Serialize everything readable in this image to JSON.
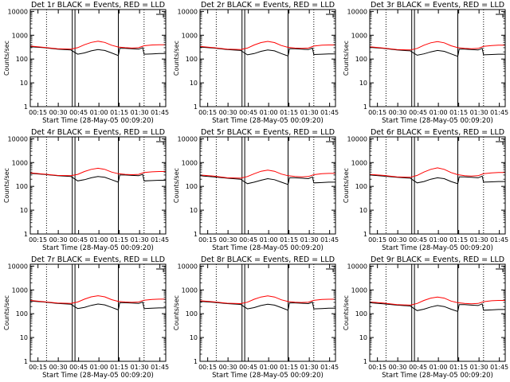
{
  "figure": {
    "background": "#ffffff",
    "axis_color": "#000000"
  },
  "colors": {
    "events": "#000000",
    "lld": "#ff0000"
  },
  "ylabel": "Counts/sec",
  "xlabel": "Start Time (28-May-05 00:09:20)",
  "x_ticks": [
    "00:15",
    "00:30",
    "00:45",
    "01:00",
    "01:15",
    "01:30",
    "01:45"
  ],
  "y_ticks": [
    "1",
    "10",
    "100",
    "1000",
    "10000"
  ],
  "chart_data": [
    {
      "type": "line",
      "title": "Det 1r BLACK = Events, RED = LLD",
      "xlabel": "Start Time (28-May-05 00:09:20)",
      "ylabel": "Counts/sec",
      "y_scale": "log",
      "ylim": [
        1,
        12000
      ],
      "xlim_minutes": [
        0,
        100
      ],
      "x_tick_minutes": [
        5.67,
        20.67,
        35.67,
        50.67,
        65.67,
        80.67,
        95.67
      ],
      "dotted_lines_minutes": [
        12,
        84
      ],
      "solid_lines_minutes": [
        31,
        33,
        65
      ],
      "series": [
        {
          "name": "BLACK = Events",
          "color": "#000000",
          "x": [
            0,
            10,
            20,
            30,
            31,
            35,
            40,
            45,
            50,
            55,
            60,
            65,
            66,
            70,
            75,
            80,
            83,
            84,
            90,
            95,
            100
          ],
          "y": [
            330,
            300,
            260,
            240,
            220,
            160,
            180,
            220,
            250,
            230,
            180,
            140,
            280,
            280,
            270,
            260,
            300,
            160,
            165,
            170,
            170
          ]
        },
        {
          "name": "RED = LLD",
          "color": "#ff0000",
          "x": [
            0,
            10,
            20,
            30,
            35,
            40,
            45,
            50,
            55,
            60,
            65,
            70,
            75,
            80,
            84,
            90,
            95,
            100
          ],
          "y": [
            350,
            310,
            270,
            260,
            300,
            400,
            500,
            560,
            500,
            380,
            320,
            300,
            290,
            300,
            360,
            390,
            400,
            400
          ]
        }
      ]
    },
    {
      "type": "line",
      "title": "Det 2r BLACK = Events, RED = LLD",
      "xlabel": "Start Time (28-May-05 00:09:20)",
      "ylabel": "Counts/sec",
      "y_scale": "log",
      "ylim": [
        1,
        12000
      ],
      "xlim_minutes": [
        0,
        100
      ],
      "x_tick_minutes": [
        5.67,
        20.67,
        35.67,
        50.67,
        65.67,
        80.67,
        95.67
      ],
      "dotted_lines_minutes": [
        12,
        84
      ],
      "solid_lines_minutes": [
        31,
        33,
        65
      ],
      "series": [
        {
          "name": "BLACK = Events",
          "color": "#000000",
          "x": [
            0,
            10,
            20,
            30,
            31,
            35,
            40,
            45,
            50,
            55,
            60,
            65,
            66,
            70,
            75,
            80,
            83,
            84,
            90,
            95,
            100
          ],
          "y": [
            320,
            290,
            250,
            230,
            210,
            150,
            170,
            210,
            240,
            220,
            170,
            135,
            270,
            270,
            260,
            250,
            290,
            155,
            160,
            165,
            165
          ]
        },
        {
          "name": "RED = LLD",
          "color": "#ff0000",
          "x": [
            0,
            10,
            20,
            30,
            35,
            40,
            45,
            50,
            55,
            60,
            65,
            70,
            75,
            80,
            84,
            90,
            95,
            100
          ],
          "y": [
            340,
            300,
            260,
            250,
            290,
            390,
            490,
            550,
            490,
            370,
            310,
            290,
            280,
            290,
            350,
            380,
            390,
            390
          ]
        }
      ]
    },
    {
      "type": "line",
      "title": "Det 3r BLACK = Events, RED = LLD",
      "xlabel": "Start Time (28-May-05 00:09:20)",
      "ylabel": "Counts/sec",
      "y_scale": "log",
      "ylim": [
        1,
        12000
      ],
      "xlim_minutes": [
        0,
        100
      ],
      "x_tick_minutes": [
        5.67,
        20.67,
        35.67,
        50.67,
        65.67,
        80.67,
        95.67
      ],
      "dotted_lines_minutes": [
        12,
        84
      ],
      "solid_lines_minutes": [
        31,
        33,
        65
      ],
      "series": [
        {
          "name": "BLACK = Events",
          "color": "#000000",
          "x": [
            0,
            10,
            20,
            30,
            31,
            35,
            40,
            45,
            50,
            55,
            60,
            65,
            66,
            70,
            75,
            80,
            83,
            84,
            90,
            95,
            100
          ],
          "y": [
            310,
            280,
            240,
            220,
            200,
            145,
            165,
            200,
            230,
            210,
            165,
            130,
            260,
            260,
            250,
            240,
            280,
            150,
            155,
            160,
            160
          ]
        },
        {
          "name": "RED = LLD",
          "color": "#ff0000",
          "x": [
            0,
            10,
            20,
            30,
            35,
            40,
            45,
            50,
            55,
            60,
            65,
            70,
            75,
            80,
            84,
            90,
            95,
            100
          ],
          "y": [
            330,
            290,
            250,
            240,
            280,
            380,
            480,
            540,
            480,
            360,
            300,
            280,
            270,
            280,
            340,
            370,
            380,
            380
          ]
        }
      ]
    },
    {
      "type": "line",
      "title": "Det 4r BLACK = Events, RED = LLD",
      "xlabel": "Start Time (28-May-05 00:09:20)",
      "ylabel": "Counts/sec",
      "y_scale": "log",
      "ylim": [
        1,
        12000
      ],
      "xlim_minutes": [
        0,
        100
      ],
      "x_tick_minutes": [
        5.67,
        20.67,
        35.67,
        50.67,
        65.67,
        80.67,
        95.67
      ],
      "dotted_lines_minutes": [
        12,
        84
      ],
      "solid_lines_minutes": [
        31,
        33,
        65
      ],
      "series": [
        {
          "name": "BLACK = Events",
          "color": "#000000",
          "x": [
            0,
            10,
            20,
            30,
            31,
            35,
            40,
            45,
            50,
            55,
            60,
            65,
            66,
            70,
            75,
            80,
            83,
            84,
            90,
            95,
            100
          ],
          "y": [
            350,
            320,
            280,
            260,
            240,
            170,
            190,
            230,
            260,
            240,
            190,
            150,
            300,
            300,
            290,
            280,
            320,
            170,
            175,
            180,
            180
          ]
        },
        {
          "name": "RED = LLD",
          "color": "#ff0000",
          "x": [
            0,
            10,
            20,
            30,
            35,
            40,
            45,
            50,
            55,
            60,
            65,
            70,
            75,
            80,
            84,
            90,
            95,
            100
          ],
          "y": [
            370,
            330,
            290,
            280,
            320,
            420,
            520,
            580,
            520,
            400,
            340,
            320,
            310,
            320,
            380,
            410,
            420,
            420
          ]
        }
      ]
    },
    {
      "type": "line",
      "title": "Det 5r BLACK = Events, RED = LLD",
      "xlabel": "Start Time (28-May-05 00:09:20)",
      "ylabel": "Counts/sec",
      "y_scale": "log",
      "ylim": [
        1,
        12000
      ],
      "xlim_minutes": [
        0,
        100
      ],
      "x_tick_minutes": [
        5.67,
        20.67,
        35.67,
        50.67,
        65.67,
        80.67,
        95.67
      ],
      "dotted_lines_minutes": [
        12,
        84
      ],
      "solid_lines_minutes": [
        31,
        33,
        65
      ],
      "series": [
        {
          "name": "BLACK = Events",
          "color": "#000000",
          "x": [
            0,
            10,
            20,
            30,
            31,
            35,
            40,
            45,
            50,
            55,
            60,
            65,
            66,
            70,
            75,
            80,
            83,
            84,
            90,
            95,
            100
          ],
          "y": [
            280,
            250,
            220,
            200,
            180,
            130,
            150,
            180,
            210,
            190,
            150,
            120,
            230,
            230,
            220,
            210,
            250,
            140,
            145,
            150,
            150
          ]
        },
        {
          "name": "RED = LLD",
          "color": "#ff0000",
          "x": [
            0,
            10,
            20,
            30,
            35,
            40,
            45,
            50,
            55,
            60,
            65,
            70,
            75,
            80,
            84,
            90,
            95,
            100
          ],
          "y": [
            300,
            270,
            230,
            220,
            260,
            340,
            430,
            480,
            430,
            330,
            280,
            260,
            250,
            260,
            310,
            340,
            350,
            350
          ]
        }
      ]
    },
    {
      "type": "line",
      "title": "Det 6r BLACK = Events, RED = LLD",
      "xlabel": "Start Time (28-May-05 00:09:20)",
      "ylabel": "Counts/sec",
      "y_scale": "log",
      "ylim": [
        1,
        12000
      ],
      "xlim_minutes": [
        0,
        100
      ],
      "x_tick_minutes": [
        5.67,
        20.67,
        35.67,
        50.67,
        65.67,
        80.67,
        95.67
      ],
      "dotted_lines_minutes": [
        12,
        84
      ],
      "solid_lines_minutes": [
        31,
        33,
        65
      ],
      "series": [
        {
          "name": "BLACK = Events",
          "color": "#000000",
          "x": [
            0,
            10,
            20,
            30,
            31,
            35,
            40,
            45,
            50,
            55,
            60,
            65,
            66,
            70,
            75,
            80,
            83,
            84,
            90,
            95,
            100
          ],
          "y": [
            300,
            270,
            240,
            220,
            200,
            140,
            160,
            200,
            230,
            210,
            160,
            130,
            250,
            250,
            240,
            230,
            270,
            150,
            155,
            160,
            160
          ]
        },
        {
          "name": "RED = LLD",
          "color": "#ff0000",
          "x": [
            0,
            10,
            20,
            30,
            35,
            40,
            45,
            50,
            55,
            60,
            65,
            70,
            75,
            80,
            84,
            90,
            95,
            100
          ],
          "y": [
            320,
            290,
            250,
            240,
            290,
            400,
            520,
            600,
            520,
            380,
            310,
            280,
            270,
            280,
            340,
            370,
            380,
            380
          ]
        }
      ]
    },
    {
      "type": "line",
      "title": "Det 7r BLACK = Events, RED = LLD",
      "xlabel": "Start Time (28-May-05 00:09:20)",
      "ylabel": "Counts/sec",
      "y_scale": "log",
      "ylim": [
        1,
        12000
      ],
      "xlim_minutes": [
        0,
        100
      ],
      "x_tick_minutes": [
        5.67,
        20.67,
        35.67,
        50.67,
        65.67,
        80.67,
        95.67
      ],
      "dotted_lines_minutes": [
        12,
        84
      ],
      "solid_lines_minutes": [
        31,
        33,
        65
      ],
      "series": [
        {
          "name": "BLACK = Events",
          "color": "#000000",
          "x": [
            0,
            10,
            20,
            30,
            31,
            35,
            40,
            45,
            50,
            55,
            60,
            65,
            66,
            70,
            75,
            80,
            83,
            84,
            90,
            95,
            100
          ],
          "y": [
            340,
            310,
            270,
            250,
            230,
            165,
            185,
            225,
            255,
            235,
            185,
            145,
            290,
            290,
            280,
            270,
            310,
            165,
            170,
            175,
            175
          ]
        },
        {
          "name": "RED = LLD",
          "color": "#ff0000",
          "x": [
            0,
            10,
            20,
            30,
            35,
            40,
            45,
            50,
            55,
            60,
            65,
            70,
            75,
            80,
            84,
            90,
            95,
            100
          ],
          "y": [
            360,
            320,
            280,
            270,
            310,
            410,
            510,
            570,
            510,
            390,
            330,
            310,
            300,
            310,
            370,
            400,
            410,
            410
          ]
        }
      ]
    },
    {
      "type": "line",
      "title": "Det 8r BLACK = Events, RED = LLD",
      "xlabel": "Start Time (28-May-05 00:09:20)",
      "ylabel": "Counts/sec",
      "y_scale": "log",
      "ylim": [
        1,
        12000
      ],
      "xlim_minutes": [
        0,
        100
      ],
      "x_tick_minutes": [
        5.67,
        20.67,
        35.67,
        50.67,
        65.67,
        80.67,
        95.67
      ],
      "dotted_lines_minutes": [
        12,
        84
      ],
      "solid_lines_minutes": [
        31,
        33,
        65
      ],
      "series": [
        {
          "name": "BLACK = Events",
          "color": "#000000",
          "x": [
            0,
            10,
            20,
            30,
            31,
            35,
            40,
            45,
            50,
            55,
            60,
            65,
            66,
            70,
            75,
            80,
            83,
            84,
            90,
            95,
            100
          ],
          "y": [
            330,
            300,
            265,
            245,
            225,
            160,
            180,
            220,
            250,
            230,
            180,
            140,
            285,
            285,
            275,
            265,
            305,
            160,
            165,
            170,
            170
          ]
        },
        {
          "name": "RED = LLD",
          "color": "#ff0000",
          "x": [
            0,
            10,
            20,
            30,
            35,
            40,
            45,
            50,
            55,
            60,
            65,
            70,
            75,
            80,
            84,
            90,
            95,
            100
          ],
          "y": [
            350,
            315,
            275,
            265,
            305,
            405,
            505,
            565,
            505,
            385,
            325,
            305,
            295,
            305,
            365,
            395,
            405,
            405
          ]
        }
      ]
    },
    {
      "type": "line",
      "title": "Det 9r BLACK = Events, RED = LLD",
      "xlabel": "Start Time (28-May-05 00:09:20)",
      "ylabel": "Counts/sec",
      "y_scale": "log",
      "ylim": [
        1,
        12000
      ],
      "xlim_minutes": [
        0,
        100
      ],
      "x_tick_minutes": [
        5.67,
        20.67,
        35.67,
        50.67,
        65.67,
        80.67,
        95.67
      ],
      "dotted_lines_minutes": [
        12,
        84
      ],
      "solid_lines_minutes": [
        31,
        33,
        65
      ],
      "series": [
        {
          "name": "BLACK = Events",
          "color": "#000000",
          "x": [
            0,
            10,
            20,
            30,
            31,
            35,
            40,
            45,
            50,
            55,
            60,
            65,
            66,
            70,
            75,
            80,
            83,
            84,
            90,
            95,
            100
          ],
          "y": [
            290,
            260,
            230,
            210,
            190,
            135,
            155,
            190,
            220,
            200,
            155,
            125,
            240,
            240,
            230,
            220,
            260,
            140,
            145,
            150,
            150
          ]
        },
        {
          "name": "RED = LLD",
          "color": "#ff0000",
          "x": [
            0,
            10,
            20,
            30,
            35,
            40,
            45,
            50,
            55,
            60,
            65,
            70,
            75,
            80,
            84,
            90,
            95,
            100
          ],
          "y": [
            310,
            280,
            240,
            230,
            270,
            360,
            450,
            500,
            450,
            340,
            290,
            270,
            260,
            270,
            320,
            350,
            360,
            360
          ]
        }
      ]
    }
  ]
}
